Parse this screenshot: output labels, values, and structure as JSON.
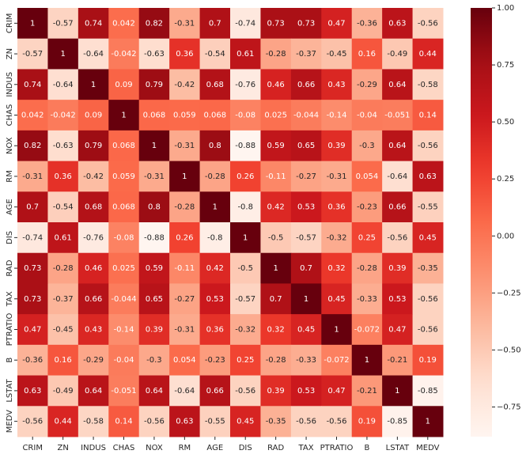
{
  "chart_data": {
    "type": "heatmap",
    "x": [
      "CRIM",
      "ZN",
      "INDUS",
      "CHAS",
      "NOX",
      "RM",
      "AGE",
      "DIS",
      "RAD",
      "TAX",
      "PTRATIO",
      "B",
      "LSTAT",
      "MEDV"
    ],
    "y": [
      "CRIM",
      "ZN",
      "INDUS",
      "CHAS",
      "NOX",
      "RM",
      "AGE",
      "DIS",
      "RAD",
      "TAX",
      "PTRATIO",
      "B",
      "LSTAT",
      "MEDV"
    ],
    "z": [
      [
        1,
        -0.57,
        0.74,
        0.042,
        0.82,
        -0.31,
        0.7,
        -0.74,
        0.73,
        0.73,
        0.47,
        -0.36,
        0.63,
        -0.56
      ],
      [
        -0.57,
        1,
        -0.64,
        -0.042,
        -0.63,
        0.36,
        -0.54,
        0.61,
        -0.28,
        -0.37,
        -0.45,
        0.16,
        -0.49,
        0.44
      ],
      [
        0.74,
        -0.64,
        1,
        0.09,
        0.79,
        -0.42,
        0.68,
        -0.76,
        0.46,
        0.66,
        0.43,
        -0.29,
        0.64,
        -0.58
      ],
      [
        0.042,
        -0.042,
        0.09,
        1,
        0.068,
        0.059,
        0.068,
        -0.08,
        0.025,
        -0.044,
        -0.14,
        -0.04,
        -0.051,
        0.14
      ],
      [
        0.82,
        -0.63,
        0.79,
        0.068,
        1,
        -0.31,
        0.8,
        -0.88,
        0.59,
        0.65,
        0.39,
        -0.3,
        0.64,
        -0.56
      ],
      [
        -0.31,
        0.36,
        -0.42,
        0.059,
        -0.31,
        1,
        -0.28,
        0.26,
        -0.11,
        -0.27,
        -0.31,
        0.054,
        -0.64,
        0.63
      ],
      [
        0.7,
        -0.54,
        0.68,
        0.068,
        0.8,
        -0.28,
        1,
        -0.8,
        0.42,
        0.53,
        0.36,
        -0.23,
        0.66,
        -0.55
      ],
      [
        -0.74,
        0.61,
        -0.76,
        -0.08,
        -0.88,
        0.26,
        -0.8,
        1,
        -0.5,
        -0.57,
        -0.32,
        0.25,
        -0.56,
        0.45
      ],
      [
        0.73,
        -0.28,
        0.46,
        0.025,
        0.59,
        -0.11,
        0.42,
        -0.5,
        1,
        0.7,
        0.32,
        -0.28,
        0.39,
        -0.35
      ],
      [
        0.73,
        -0.37,
        0.66,
        -0.044,
        0.65,
        -0.27,
        0.53,
        -0.57,
        0.7,
        1,
        0.45,
        -0.33,
        0.53,
        -0.56
      ],
      [
        0.47,
        -0.45,
        0.43,
        -0.14,
        0.39,
        -0.31,
        0.36,
        -0.32,
        0.32,
        0.45,
        1,
        -0.072,
        0.47,
        -0.56
      ],
      [
        -0.36,
        0.16,
        -0.29,
        -0.04,
        -0.3,
        0.054,
        -0.23,
        0.25,
        -0.28,
        -0.33,
        -0.072,
        1,
        -0.21,
        0.19
      ],
      [
        0.63,
        -0.49,
        0.64,
        -0.051,
        0.64,
        -0.64,
        0.66,
        -0.56,
        0.39,
        0.53,
        0.47,
        -0.21,
        1,
        -0.85
      ],
      [
        -0.56,
        0.44,
        -0.58,
        0.14,
        -0.56,
        0.63,
        -0.55,
        0.45,
        -0.35,
        -0.56,
        -0.56,
        0.19,
        -0.85,
        1
      ]
    ],
    "zlim": [
      -0.88,
      1
    ],
    "zticks": [
      {
        "value": 1,
        "label": "1.00"
      },
      {
        "value": 0.75,
        "label": "0.75"
      },
      {
        "value": 0.5,
        "label": "0.50"
      },
      {
        "value": 0.25,
        "label": "0.25"
      },
      {
        "value": 0,
        "label": "0.00"
      },
      {
        "value": -0.25,
        "label": "−0.25"
      },
      {
        "value": -0.5,
        "label": "−0.50"
      },
      {
        "value": -0.75,
        "label": "−0.75"
      }
    ],
    "colormap": "Reds"
  }
}
